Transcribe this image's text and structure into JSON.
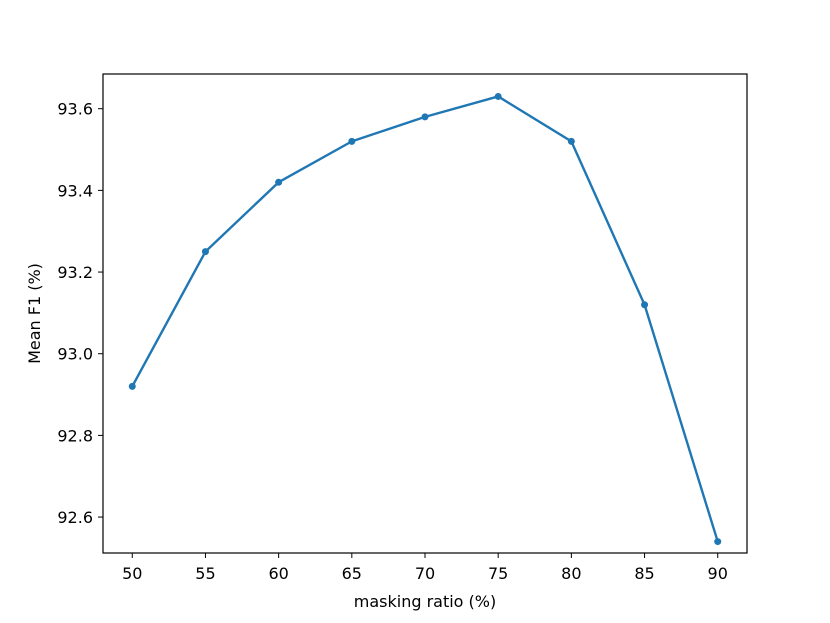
{
  "chart_data": {
    "type": "line",
    "title": "",
    "xlabel": "masking ratio (%)",
    "ylabel": "Mean F1 (%)",
    "x": [
      50,
      55,
      60,
      65,
      70,
      75,
      80,
      85,
      90
    ],
    "series": [
      {
        "values": [
          92.92,
          93.25,
          93.42,
          93.52,
          93.58,
          93.63,
          93.52,
          93.12,
          92.54
        ]
      }
    ],
    "xlim": [
      48.0,
      92.0
    ],
    "ylim": [
      92.512,
      93.685
    ],
    "xticks": [
      "50",
      "55",
      "60",
      "65",
      "70",
      "75",
      "80",
      "85",
      "90"
    ],
    "yticks": [
      "92.6",
      "92.8",
      "93.0",
      "93.2",
      "93.4",
      "93.6"
    ],
    "grid": false,
    "marker": "circle",
    "line_color": "#1f77b4"
  }
}
